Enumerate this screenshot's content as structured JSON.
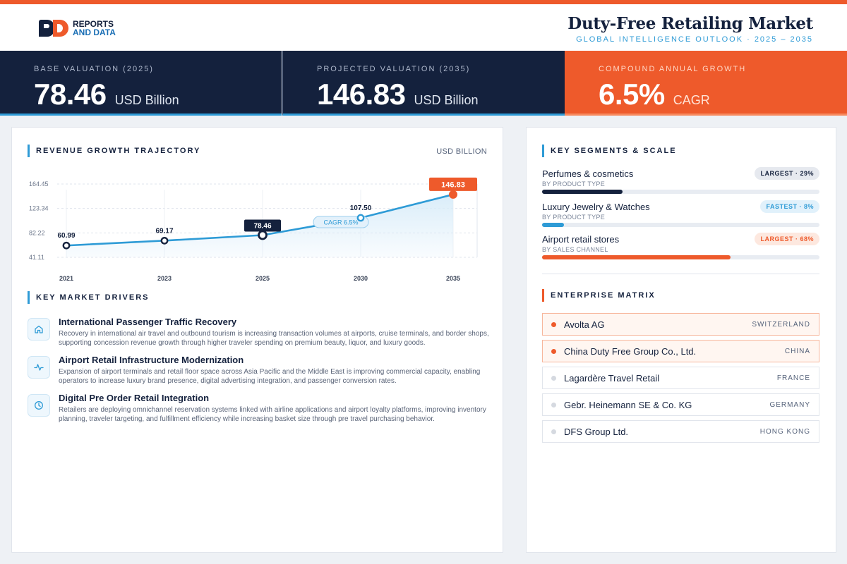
{
  "brand": {
    "logo_line1": "REPORTS",
    "logo_line2": "AND DATA"
  },
  "header": {
    "title": "Duty-Free Retailing Market",
    "subtitle": "GLOBAL INTELLIGENCE OUTLOOK  ·  2025 – 2035"
  },
  "kpis": [
    {
      "label": "BASE VALUATION (2025)",
      "value": "78.46",
      "unit": "USD Billion"
    },
    {
      "label": "PROJECTED VALUATION (2035)",
      "value": "146.83",
      "unit": "USD Billion"
    },
    {
      "label": "COMPOUND ANNUAL GROWTH",
      "value": "6.5%",
      "unit": "CAGR"
    }
  ],
  "chart_section": {
    "title": "REVENUE GROWTH TRAJECTORY",
    "unit": "USD BILLION"
  },
  "chart_data": {
    "type": "area",
    "x": [
      "2021",
      "2023",
      "2025",
      "2030",
      "2035"
    ],
    "series": [
      {
        "values": [
          60.99,
          69.17,
          78.46,
          107.5,
          146.83
        ]
      }
    ],
    "data_labels": [
      "60.99",
      "69.17",
      "78.46",
      "107.50",
      "146.83"
    ],
    "y_ticks": [
      "164.45",
      "123.34",
      "82.22",
      "41.11"
    ],
    "ylim": [
      41.11,
      164.45
    ],
    "annotation": "CAGR 6.5%",
    "highlight_base": "2025",
    "highlight_end": "2035",
    "grid": true,
    "colors": {
      "line": "#2e9bd6",
      "area": "#d8ecf9",
      "base": "#14213d",
      "end": "#ee5a2b"
    }
  },
  "drivers_section": {
    "title": "KEY MARKET DRIVERS"
  },
  "drivers": [
    {
      "icon": "home-icon",
      "title": "International Passenger Traffic Recovery",
      "desc": "Recovery in international air travel and outbound tourism is increasing transaction volumes at airports, cruise terminals, and border shops, supporting concession revenue growth through higher traveler spending on premium beauty, liquor, and luxury goods."
    },
    {
      "icon": "activity-icon",
      "title": "Airport Retail Infrastructure Modernization",
      "desc": "Expansion of airport terminals and retail floor space across Asia Pacific and the Middle East is improving commercial capacity, enabling operators to increase luxury brand presence, digital advertising integration, and passenger conversion rates."
    },
    {
      "icon": "clock-icon",
      "title": "Digital Pre Order Retail Integration",
      "desc": "Retailers are deploying omnichannel reservation systems linked with airline applications and airport loyalty platforms, improving inventory planning, traveler targeting, and fulfillment efficiency while increasing basket size through pre travel purchasing behavior."
    }
  ],
  "segments_section": {
    "title": "KEY SEGMENTS & SCALE"
  },
  "segments": [
    {
      "name": "Perfumes & cosmetics",
      "category": "BY PRODUCT TYPE",
      "badge": "LARGEST · 29%",
      "share": 29,
      "color": "#14213d",
      "style": "navy"
    },
    {
      "name": "Luxury Jewelry & Watches",
      "category": "BY PRODUCT TYPE",
      "badge": "FASTEST · 8%",
      "share": 8,
      "color": "#2e9bd6",
      "style": "blue"
    },
    {
      "name": "Airport retail stores",
      "category": "BY SALES CHANNEL",
      "badge": "LARGEST · 68%",
      "share": 68,
      "color": "#ee5a2b",
      "style": "orange"
    }
  ],
  "enterprise_section": {
    "title": "ENTERPRISE MATRIX"
  },
  "enterprises": [
    {
      "name": "Avolta AG",
      "country": "SWITZERLAND",
      "highlight": true
    },
    {
      "name": "China Duty Free Group Co., Ltd.",
      "country": "CHINA",
      "highlight": true
    },
    {
      "name": "Lagardère Travel Retail",
      "country": "FRANCE",
      "highlight": false
    },
    {
      "name": "Gebr. Heinemann SE & Co. KG",
      "country": "GERMANY",
      "highlight": false
    },
    {
      "name": "DFS Group Ltd.",
      "country": "HONG KONG",
      "highlight": false
    }
  ]
}
